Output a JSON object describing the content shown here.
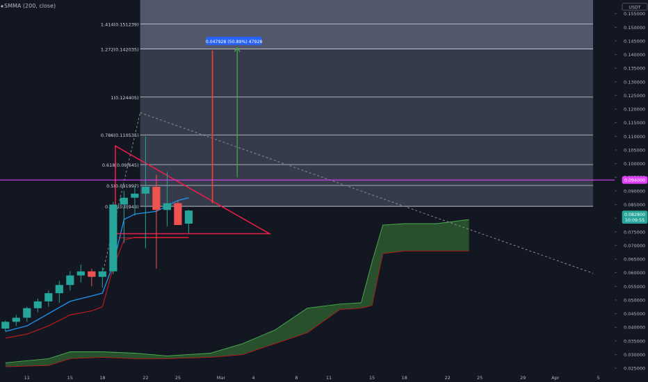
{
  "indicator": {
    "label": "SMMA (200, close)"
  },
  "colors": {
    "background": "#131722",
    "bull": "#26a69a",
    "bear": "#ef5350",
    "smma_fast": "#2196f3",
    "smma_slow": "#b71c1c",
    "cloud": "#2e5b2e",
    "fib_fill_upper": "#5d6478",
    "fib_fill_lower": "#3a3f4f",
    "triangle": "#e91e4b",
    "magenta_line": "#e040fb",
    "arrow_red": "#f44336",
    "arrow_green": "#4caf50",
    "measure_tag": "#2962ff",
    "trend_dashed": "#9598a1",
    "axis_text": "#b2b5be"
  },
  "chart_data": {
    "type": "candlestick",
    "currency": "USDT",
    "y_axis": {
      "range": [
        0.0235,
        0.16
      ],
      "ticks": [
        0.155,
        0.15,
        0.145,
        0.14,
        0.135,
        0.13,
        0.125,
        0.12,
        0.115,
        0.11,
        0.105,
        0.1,
        0.095,
        0.09,
        0.085,
        0.08,
        0.075,
        0.07,
        0.065,
        0.06,
        0.055,
        0.05,
        0.045,
        0.04,
        0.035,
        0.03,
        0.025
      ],
      "tick_labels": [
        "0.155000",
        "0.150000",
        "0.145000",
        "0.140000",
        "0.135000",
        "0.130000",
        "0.125000",
        "0.120000",
        "0.115000",
        "0.110000",
        "0.105000",
        "0.100000",
        "0.095000",
        "0.090000",
        "0.085000",
        "0.080000",
        "0.075000",
        "0.070000",
        "0.065000",
        "0.060000",
        "0.055000",
        "0.050000",
        "0.045000",
        "0.040000",
        "0.035000",
        "0.030000",
        "0.025000"
      ]
    },
    "x_axis": {
      "range": [
        -2.5,
        54.5
      ],
      "ticks": [
        {
          "label": "11",
          "x": 0
        },
        {
          "label": "15",
          "x": 4
        },
        {
          "label": "18",
          "x": 7
        },
        {
          "label": "22",
          "x": 11
        },
        {
          "label": "25",
          "x": 14
        },
        {
          "label": "Mar",
          "x": 18
        },
        {
          "label": "4",
          "x": 21
        },
        {
          "label": "8",
          "x": 25
        },
        {
          "label": "11",
          "x": 28
        },
        {
          "label": "15",
          "x": 32
        },
        {
          "label": "18",
          "x": 35
        },
        {
          "label": "22",
          "x": 39
        },
        {
          "label": "25",
          "x": 42
        },
        {
          "label": "29",
          "x": 46
        },
        {
          "label": "Apr",
          "x": 49
        },
        {
          "label": "5",
          "x": 53
        }
      ]
    },
    "price_badges": [
      {
        "label": "0.094000",
        "value": 0.094,
        "bg": "#e040fb",
        "fg": "#ffffff"
      },
      {
        "label": "0.082800",
        "label2": "10:09:55",
        "value": 0.0814,
        "bg": "#26a69a",
        "fg": "#ffffff"
      },
      {
        "label": "USDT",
        "value": 0.1575,
        "bg": "#131722",
        "fg": "#b2b5be"
      }
    ],
    "candles": [
      {
        "x": -2,
        "o": 0.0395,
        "h": 0.0425,
        "l": 0.0385,
        "c": 0.042
      },
      {
        "x": -1,
        "o": 0.042,
        "h": 0.0445,
        "l": 0.0405,
        "c": 0.0435
      },
      {
        "x": 0,
        "o": 0.0435,
        "h": 0.0475,
        "l": 0.042,
        "c": 0.047
      },
      {
        "x": 1,
        "o": 0.047,
        "h": 0.0505,
        "l": 0.0455,
        "c": 0.0495
      },
      {
        "x": 2,
        "o": 0.0495,
        "h": 0.0535,
        "l": 0.0475,
        "c": 0.0525
      },
      {
        "x": 3,
        "o": 0.0525,
        "h": 0.057,
        "l": 0.049,
        "c": 0.0555
      },
      {
        "x": 4,
        "o": 0.0555,
        "h": 0.0605,
        "l": 0.0535,
        "c": 0.059
      },
      {
        "x": 5,
        "o": 0.059,
        "h": 0.063,
        "l": 0.0565,
        "c": 0.0605
      },
      {
        "x": 6,
        "o": 0.0605,
        "h": 0.0615,
        "l": 0.055,
        "c": 0.0585
      },
      {
        "x": 7,
        "o": 0.0585,
        "h": 0.062,
        "l": 0.0545,
        "c": 0.0605
      },
      {
        "x": 8,
        "o": 0.0605,
        "h": 0.086,
        "l": 0.0595,
        "c": 0.085
      },
      {
        "x": 9,
        "o": 0.085,
        "h": 0.09,
        "l": 0.071,
        "c": 0.0875
      },
      {
        "x": 10,
        "o": 0.0875,
        "h": 0.092,
        "l": 0.081,
        "c": 0.089
      },
      {
        "x": 11,
        "o": 0.089,
        "h": 0.11,
        "l": 0.069,
        "c": 0.0915
      },
      {
        "x": 12,
        "o": 0.0915,
        "h": 0.096,
        "l": 0.0615,
        "c": 0.083
      },
      {
        "x": 13,
        "o": 0.083,
        "h": 0.097,
        "l": 0.077,
        "c": 0.0855
      },
      {
        "x": 14,
        "o": 0.0855,
        "h": 0.0865,
        "l": 0.0775,
        "c": 0.0775
      },
      {
        "x": 15,
        "o": 0.078,
        "h": 0.083,
        "l": 0.0745,
        "c": 0.0828
      }
    ],
    "smma_fast": [
      {
        "x": -2,
        "y": 0.0385
      },
      {
        "x": 0,
        "y": 0.0405
      },
      {
        "x": 2,
        "y": 0.045
      },
      {
        "x": 4,
        "y": 0.0495
      },
      {
        "x": 6,
        "y": 0.0515
      },
      {
        "x": 7,
        "y": 0.0525
      },
      {
        "x": 8,
        "y": 0.063
      },
      {
        "x": 9,
        "y": 0.0795
      },
      {
        "x": 10,
        "y": 0.0815
      },
      {
        "x": 12,
        "y": 0.0825
      },
      {
        "x": 14,
        "y": 0.0865
      },
      {
        "x": 15,
        "y": 0.0875
      }
    ],
    "smma_slow": [
      {
        "x": -2,
        "y": 0.036
      },
      {
        "x": 0,
        "y": 0.0375
      },
      {
        "x": 2,
        "y": 0.0405
      },
      {
        "x": 4,
        "y": 0.0445
      },
      {
        "x": 6,
        "y": 0.046
      },
      {
        "x": 7,
        "y": 0.0475
      },
      {
        "x": 8,
        "y": 0.062
      },
      {
        "x": 9,
        "y": 0.072
      },
      {
        "x": 10,
        "y": 0.073
      },
      {
        "x": 15,
        "y": 0.073
      }
    ],
    "cloud": {
      "upper": [
        {
          "x": -2,
          "y": 0.027
        },
        {
          "x": 2,
          "y": 0.0285
        },
        {
          "x": 4,
          "y": 0.031
        },
        {
          "x": 7,
          "y": 0.031
        },
        {
          "x": 10,
          "y": 0.0305
        },
        {
          "x": 13,
          "y": 0.0295
        },
        {
          "x": 17,
          "y": 0.0305
        },
        {
          "x": 20,
          "y": 0.034
        },
        {
          "x": 23,
          "y": 0.039
        },
        {
          "x": 26,
          "y": 0.047
        },
        {
          "x": 29,
          "y": 0.0485
        },
        {
          "x": 31,
          "y": 0.049
        },
        {
          "x": 32,
          "y": 0.064
        },
        {
          "x": 33,
          "y": 0.0775
        },
        {
          "x": 35,
          "y": 0.078
        },
        {
          "x": 38,
          "y": 0.078
        },
        {
          "x": 41,
          "y": 0.0795
        }
      ],
      "lower": [
        {
          "x": -2,
          "y": 0.0255
        },
        {
          "x": 2,
          "y": 0.026
        },
        {
          "x": 4,
          "y": 0.0285
        },
        {
          "x": 7,
          "y": 0.029
        },
        {
          "x": 10,
          "y": 0.0285
        },
        {
          "x": 13,
          "y": 0.0285
        },
        {
          "x": 17,
          "y": 0.029
        },
        {
          "x": 20,
          "y": 0.03
        },
        {
          "x": 23,
          "y": 0.034
        },
        {
          "x": 26,
          "y": 0.038
        },
        {
          "x": 29,
          "y": 0.0465
        },
        {
          "x": 31,
          "y": 0.047
        },
        {
          "x": 32,
          "y": 0.048
        },
        {
          "x": 33,
          "y": 0.067
        },
        {
          "x": 35,
          "y": 0.068
        },
        {
          "x": 38,
          "y": 0.068
        },
        {
          "x": 41,
          "y": 0.068
        }
      ]
    },
    "fibonacci": {
      "x_start": 10.5,
      "x_end": 52.5,
      "top_value": 0.16,
      "levels": [
        {
          "label": "1.414(0.151239)",
          "value": 0.151239
        },
        {
          "label": "1.272(0.142035)",
          "value": 0.142035
        },
        {
          "label": "1(0.124405)",
          "value": 0.124405
        },
        {
          "label": "0.786(0.110535)",
          "value": 0.110535
        },
        {
          "label": "0.618(0.09|645)",
          "value": 0.09965
        },
        {
          "label": "0.5(0.091997)",
          "value": 0.091997
        },
        {
          "label": "0.382(0.0|949)",
          "value": 0.08435
        }
      ]
    },
    "triangle": [
      {
        "x": 8.2,
        "y": 0.1065
      },
      {
        "x": 22.5,
        "y": 0.0743
      },
      {
        "x": 8.2,
        "y": 0.0743
      }
    ],
    "support_line": {
      "x1": 8.5,
      "x2": 15,
      "y": 0.0728
    },
    "dashed_trend": [
      {
        "x": 7,
        "y": 0.0595
      },
      {
        "x": 10.5,
        "y": 0.1187
      },
      {
        "x": 52.5,
        "y": 0.0598
      }
    ],
    "magenta_line": {
      "value": 0.094
    },
    "red_arrow": {
      "x": 17.2,
      "y1": 0.0855,
      "y2": 0.1415
    },
    "green_arrow": {
      "x": 19.5,
      "y1": 0.095,
      "y2": 0.1425
    },
    "measure_label": {
      "text": "0.047928 (50.89%) 47928",
      "x": 19.2,
      "y": 0.145
    }
  }
}
